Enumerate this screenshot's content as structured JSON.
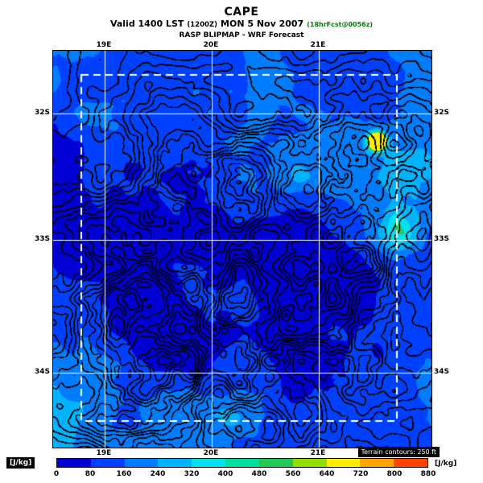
{
  "header": {
    "title": "CAPE",
    "valid_prefix": "Valid 1400 LST",
    "valid_zulu": "(1200Z)",
    "valid_date": "MON 5 Nov 2007",
    "fcst_tag": "(18hrFcst@0056z)",
    "model_line": "RASP BLIPMAP - WRF Forecast"
  },
  "map": {
    "lon_ticks": [
      "19E",
      "20E",
      "21E"
    ],
    "lat_ticks": [
      "32S",
      "33S",
      "34S"
    ],
    "sea_color": "#0038e0",
    "grid_color": "#ffffff",
    "contour_color": "#000000",
    "domain_box_color": "#ffffff"
  },
  "colorbar": {
    "units_left": "[J/kg]",
    "units_right": "[J/kg]",
    "tick_labels": [
      "0",
      "80",
      "160",
      "240",
      "320",
      "400",
      "480",
      "560",
      "640",
      "720",
      "800",
      "880"
    ],
    "segment_colors": [
      "#0000d2",
      "#0041ff",
      "#007dff",
      "#00b3ff",
      "#00e2f0",
      "#00dfa0",
      "#22c855",
      "#8fdf00",
      "#ffee00",
      "#ffa400",
      "#ff4400"
    ],
    "terrain_note": "Terrain contours: 250 ft"
  }
}
